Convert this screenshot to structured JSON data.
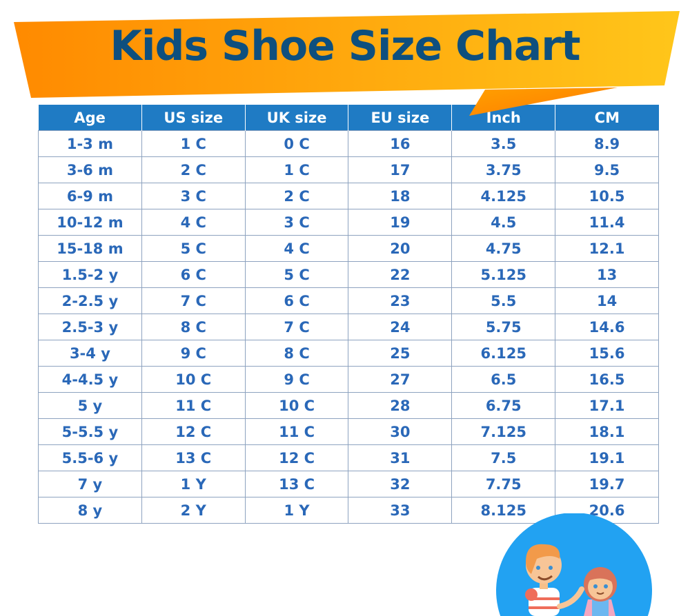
{
  "title": "Kids Shoe Size Chart",
  "colors": {
    "banner_start": "#ff8c00",
    "banner_end": "#ffc61a",
    "title": "#0e4f7e",
    "header_bg": "#1f7bc4",
    "cell_text": "#2a68b8",
    "circle": "#22a2f2"
  },
  "table": {
    "headers": [
      "Age",
      "US size",
      "UK size",
      "EU size",
      "Inch",
      "CM"
    ],
    "rows": [
      [
        "1-3 m",
        "1 C",
        "0 C",
        "16",
        "3.5",
        "8.9"
      ],
      [
        "3-6 m",
        "2 C",
        "1 C",
        "17",
        "3.75",
        "9.5"
      ],
      [
        "6-9 m",
        "3 C",
        "2 C",
        "18",
        "4.125",
        "10.5"
      ],
      [
        "10-12 m",
        "4 C",
        "3 C",
        "19",
        "4.5",
        "11.4"
      ],
      [
        "15-18 m",
        "5 C",
        "4 C",
        "20",
        "4.75",
        "12.1"
      ],
      [
        "1.5-2 y",
        "6 C",
        "5 C",
        "22",
        "5.125",
        "13"
      ],
      [
        "2-2.5 y",
        "7 C",
        "6 C",
        "23",
        "5.5",
        "14"
      ],
      [
        "2.5-3 y",
        "8 C",
        "7 C",
        "24",
        "5.75",
        "14.6"
      ],
      [
        "3-4 y",
        "9 C",
        "8 C",
        "25",
        "6.125",
        "15.6"
      ],
      [
        "4-4.5 y",
        "10 C",
        "9 C",
        "27",
        "6.5",
        "16.5"
      ],
      [
        "5 y",
        "11 C",
        "10 C",
        "28",
        "6.75",
        "17.1"
      ],
      [
        "5-5.5 y",
        "12 C",
        "11 C",
        "30",
        "7.125",
        "18.1"
      ],
      [
        "5.5-6 y",
        "13 C",
        "12 C",
        "31",
        "7.5",
        "19.1"
      ],
      [
        "7 y",
        "1 Y",
        "13 C",
        "32",
        "7.75",
        "19.7"
      ],
      [
        "8 y",
        "2 Y",
        "1 Y",
        "33",
        "8.125",
        "20.6"
      ]
    ]
  }
}
